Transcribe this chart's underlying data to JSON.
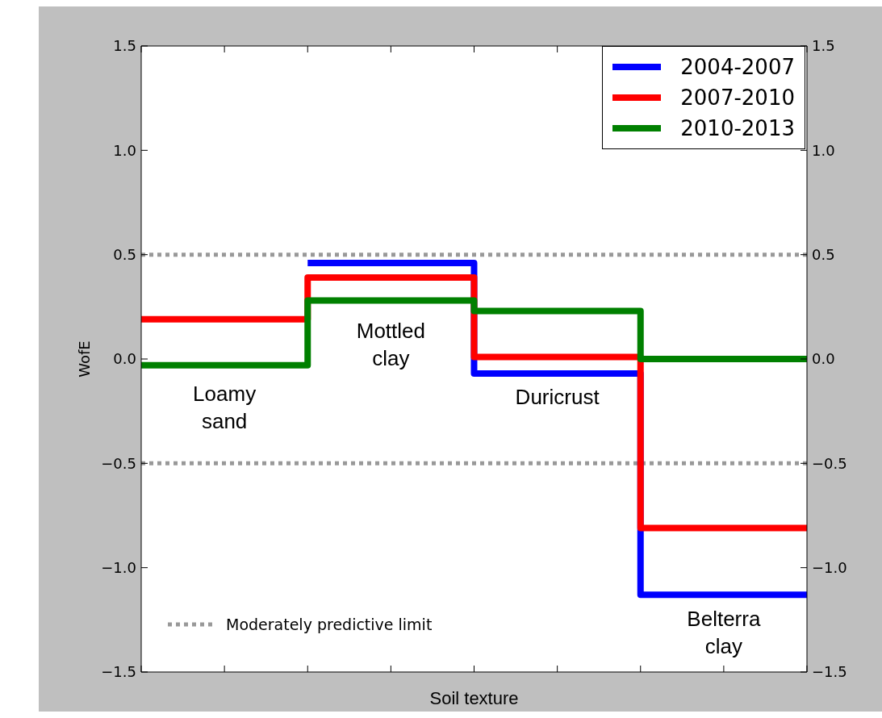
{
  "chart_data": {
    "type": "step",
    "xlabel": "Soil texture",
    "ylabel": "WofE",
    "categories": [
      null,
      null,
      null,
      null,
      null
    ],
    "series": [
      {
        "name": "2004-2007",
        "color": "#0000ff",
        "values": [
          null,
          0.46,
          -0.07,
          -1.13,
          -1.13
        ]
      },
      {
        "name": "2007-2010",
        "color": "#ff0000",
        "values": [
          0.19,
          0.39,
          0.01,
          -0.81,
          -0.81
        ]
      },
      {
        "name": "2010-2013",
        "color": "#008000",
        "values": [
          -0.03,
          0.28,
          0.23,
          0.0,
          0.0
        ]
      }
    ],
    "ylim": [
      -1.5,
      1.5
    ],
    "yticks": [
      {
        "value": -1.5,
        "label": "−1.5"
      },
      {
        "value": -1.0,
        "label": "−1.0"
      },
      {
        "value": -0.5,
        "label": "−0.5"
      },
      {
        "value": 0,
        "label": "0.0"
      },
      {
        "value": 0.5,
        "label": "0.5"
      },
      {
        "value": 1.0,
        "label": "1.0"
      },
      {
        "value": 1.5,
        "label": "1.5"
      }
    ],
    "y2lim": [
      -1.5,
      1.5
    ],
    "y2ticks": [
      {
        "value": -1.5,
        "label": "−1.5"
      },
      {
        "value": -1.0,
        "label": "−1.0"
      },
      {
        "value": -0.5,
        "label": "−0.5"
      },
      {
        "value": 0,
        "label": "0.0"
      },
      {
        "value": 0.5,
        "label": "0.5"
      },
      {
        "value": 1.0,
        "label": "1.0"
      },
      {
        "value": 1.5,
        "label": "1.5"
      }
    ],
    "tick_labels": "y",
    "legend": "top right",
    "line_style": "solid",
    "marker": "none",
    "ref_lines": [
      {
        "axis": "y",
        "value": 0.5,
        "label": "Moderately predictive limit",
        "color": "#999999",
        "line_style": "dotted"
      },
      {
        "axis": "y",
        "value": -0.5,
        "color": "#999999",
        "line_style": "dotted"
      }
    ],
    "annotations": [
      "Loamy sand",
      "Mottled clay",
      "Duricrust",
      "Belterra clay"
    ]
  }
}
